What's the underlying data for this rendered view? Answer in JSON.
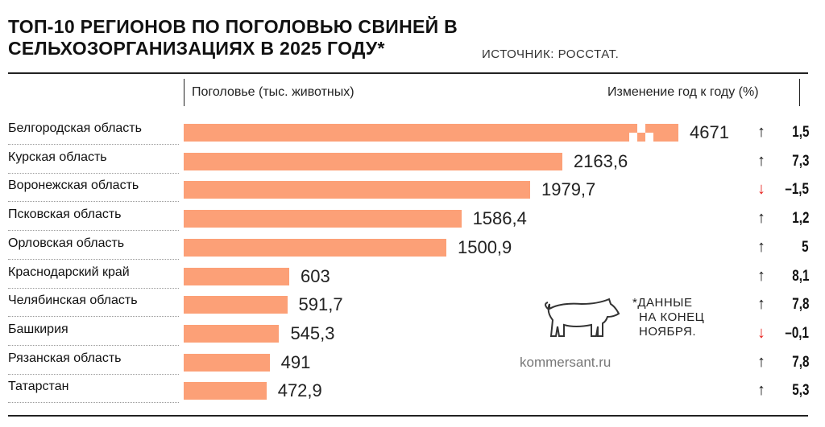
{
  "chart_data": {
    "type": "bar",
    "title": "ТОП-10 РЕГИОНОВ ПО ПОГОЛОВЬЮ СВИНЕЙ В СЕЛЬХОЗОРГАНИЗАЦИЯХ В 2025 ГОДУ*",
    "source": "ИСТОЧНИК: РОССТАТ.",
    "value_header": "Поголовье (тыс. животных)",
    "change_header": "Изменение год к году (%)",
    "categories": [
      "Белгородская область",
      "Курская область",
      "Воронежская область",
      "Псковская область",
      "Орловская область",
      "Краснодарский край",
      "Челябинская область",
      "Башкирия",
      "Рязанская область",
      "Татарстан"
    ],
    "values": [
      4671,
      2163.6,
      1979.7,
      1586.4,
      1500.9,
      603,
      591.7,
      545.3,
      491,
      472.9
    ],
    "value_labels": [
      "4671",
      "2163,6",
      "1979,7",
      "1586,4",
      "1500,9",
      "603",
      "591,7",
      "545,3",
      "491",
      "472,9"
    ],
    "changes": [
      1.5,
      7.3,
      -1.5,
      1.2,
      5,
      8.1,
      7.8,
      -0.1,
      7.8,
      5.3
    ],
    "change_labels": [
      "1,5",
      "7,3",
      "–1,5",
      "1,2",
      "5",
      "8,1",
      "7,8",
      "–0,1",
      "7,8",
      "5,3"
    ],
    "footnote": [
      "*ДАННЫЕ",
      "НА КОНЕЦ",
      "НОЯБРЯ."
    ],
    "site": "kommersant.ru",
    "colors": {
      "bar": "#fca077",
      "up": "#111111",
      "down": "#e8231f"
    }
  }
}
